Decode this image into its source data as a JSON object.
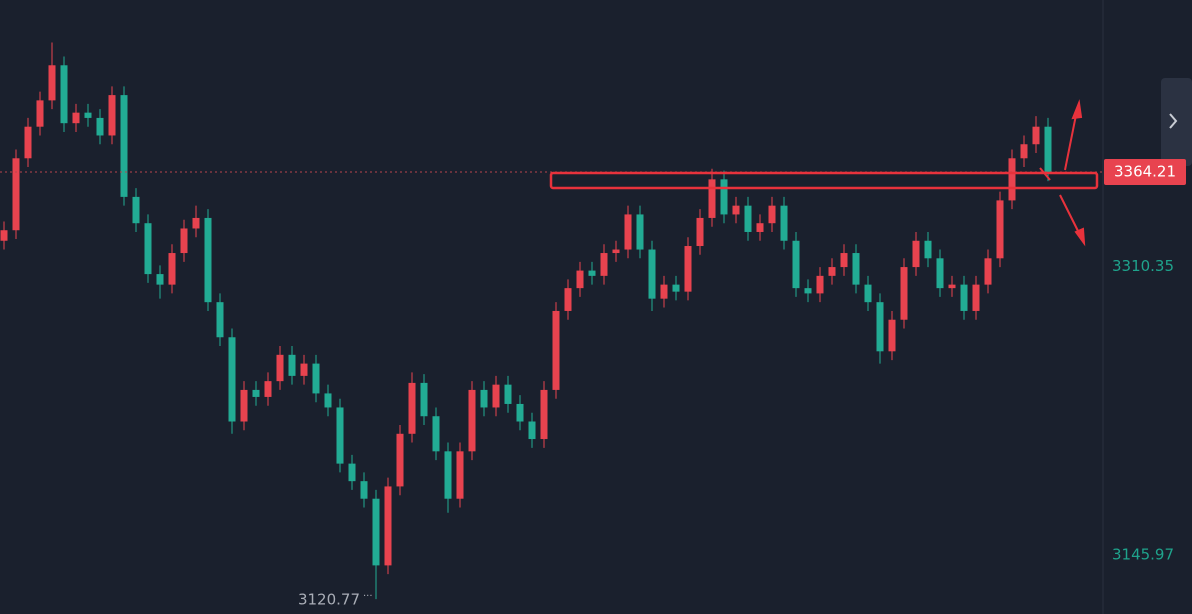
{
  "chart_data": {
    "type": "candlestick",
    "open": [
      3325,
      3331,
      3372,
      3390,
      3405,
      3425,
      3392,
      3398,
      3395,
      3385,
      3408,
      3350,
      3335,
      3306,
      3300,
      3318,
      3332,
      3338,
      3290,
      3270,
      3222,
      3240,
      3236,
      3245,
      3260,
      3248,
      3255,
      3238,
      3230,
      3198,
      3188,
      3178,
      3140,
      3185,
      3215,
      3244,
      3225,
      3205,
      3178,
      3205,
      3240,
      3230,
      3243,
      3232,
      3222,
      3212,
      3240,
      3285,
      3298,
      3308,
      3305,
      3318,
      3320,
      3340,
      3320,
      3292,
      3300,
      3296,
      3322,
      3338,
      3360,
      3340,
      3345,
      3330,
      3335,
      3345,
      3325,
      3298,
      3295,
      3305,
      3310,
      3318,
      3300,
      3290,
      3262,
      3280,
      3310,
      3325,
      3315,
      3298,
      3300,
      3285,
      3300,
      3315,
      3348,
      3372,
      3380,
      3390
    ],
    "high": [
      3336,
      3377,
      3395,
      3410,
      3438,
      3430,
      3403,
      3403,
      3400,
      3413,
      3413,
      3355,
      3340,
      3311,
      3323,
      3337,
      3345,
      3343,
      3295,
      3275,
      3245,
      3245,
      3250,
      3265,
      3265,
      3260,
      3260,
      3243,
      3235,
      3203,
      3193,
      3183,
      3190,
      3220,
      3250,
      3249,
      3230,
      3210,
      3210,
      3245,
      3245,
      3248,
      3248,
      3237,
      3227,
      3245,
      3290,
      3303,
      3313,
      3313,
      3323,
      3325,
      3345,
      3345,
      3325,
      3305,
      3305,
      3327,
      3343,
      3366,
      3365,
      3350,
      3350,
      3340,
      3350,
      3350,
      3330,
      3303,
      3310,
      3315,
      3323,
      3323,
      3305,
      3295,
      3285,
      3315,
      3330,
      3330,
      3320,
      3305,
      3305,
      3305,
      3320,
      3353,
      3377,
      3385,
      3396,
      3395
    ],
    "low": [
      3320,
      3326,
      3367,
      3385,
      3400,
      3387,
      3387,
      3390,
      3380,
      3380,
      3345,
      3330,
      3301,
      3292,
      3295,
      3313,
      3327,
      3285,
      3265,
      3215,
      3217,
      3231,
      3231,
      3240,
      3243,
      3243,
      3233,
      3225,
      3193,
      3183,
      3173,
      3120.77,
      3135,
      3180,
      3210,
      3220,
      3200,
      3170,
      3173,
      3200,
      3225,
      3225,
      3227,
      3217,
      3207,
      3207,
      3235,
      3280,
      3293,
      3300,
      3300,
      3313,
      3315,
      3315,
      3285,
      3287,
      3291,
      3291,
      3317,
      3333,
      3335,
      3335,
      3325,
      3325,
      3330,
      3320,
      3293,
      3290,
      3290,
      3300,
      3305,
      3295,
      3285,
      3255,
      3257,
      3275,
      3305,
      3310,
      3293,
      3293,
      3280,
      3280,
      3295,
      3310,
      3343,
      3367,
      3375,
      3359
    ],
    "close": [
      3331,
      3372,
      3390,
      3405,
      3425,
      3392,
      3398,
      3395,
      3385,
      3408,
      3350,
      3335,
      3306,
      3300,
      3318,
      3332,
      3338,
      3290,
      3270,
      3222,
      3240,
      3236,
      3245,
      3260,
      3248,
      3255,
      3238,
      3230,
      3198,
      3188,
      3178,
      3140,
      3185,
      3215,
      3244,
      3225,
      3205,
      3178,
      3205,
      3240,
      3230,
      3243,
      3232,
      3222,
      3212,
      3240,
      3285,
      3298,
      3308,
      3305,
      3318,
      3320,
      3340,
      3320,
      3292,
      3300,
      3296,
      3322,
      3338,
      3360,
      3340,
      3345,
      3330,
      3335,
      3345,
      3325,
      3298,
      3295,
      3305,
      3310,
      3318,
      3300,
      3290,
      3262,
      3280,
      3310,
      3325,
      3315,
      3298,
      3300,
      3285,
      3300,
      3315,
      3348,
      3372,
      3380,
      3390,
      3364.21
    ],
    "up_color": "#e8434f",
    "down_color": "#22ab94",
    "ylim": [
      3112.3,
      3462.2
    ],
    "yticks": [
      3145.97,
      3310.35
    ]
  }
}
